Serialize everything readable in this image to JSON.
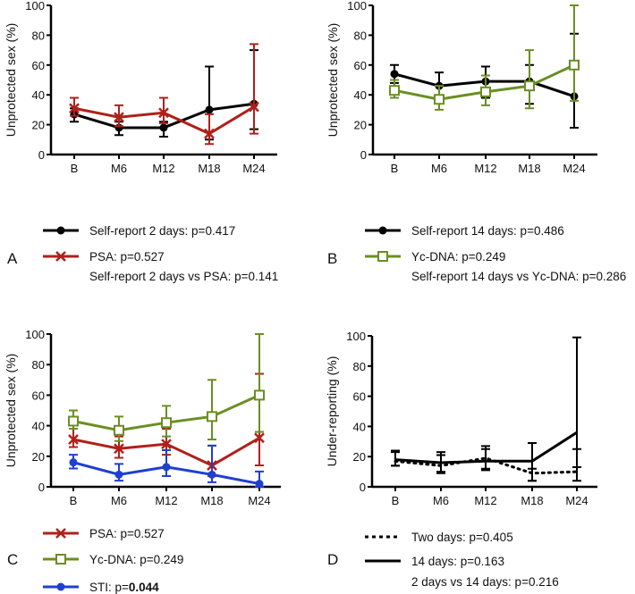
{
  "chart_data": [
    {
      "panel": "A",
      "type": "line",
      "ylabel": "Unprotected sex (%)",
      "ylim": [
        0,
        100
      ],
      "yticks": [
        "0",
        "20",
        "40",
        "60",
        "80",
        "100"
      ],
      "categories": [
        "B",
        "M6",
        "M12",
        "M18",
        "M24"
      ],
      "series": [
        {
          "name": "Self-report 2 days: p=0.417",
          "color": "#000000",
          "marker": "circle",
          "dash": "solid",
          "values": [
            27,
            18,
            18,
            30,
            34
          ],
          "lower": [
            22,
            13,
            12,
            10,
            17
          ],
          "upper": [
            31,
            22,
            22,
            59,
            70
          ]
        },
        {
          "name": "PSA: p=0.527",
          "color": "#b0201a",
          "marker": "x",
          "dash": "solid",
          "values": [
            31,
            25,
            28,
            14,
            32
          ],
          "lower": [
            26,
            19,
            21,
            7,
            14
          ],
          "upper": [
            38,
            33,
            38,
            27,
            74
          ]
        }
      ],
      "note": "Self-report 2 days vs PSA: p=0.141"
    },
    {
      "panel": "B",
      "type": "line",
      "ylabel": "Unprotected sex (%)",
      "ylim": [
        0,
        100
      ],
      "yticks": [
        "0",
        "20",
        "40",
        "60",
        "80",
        "100"
      ],
      "categories": [
        "B",
        "M6",
        "M12",
        "M18",
        "M24"
      ],
      "series": [
        {
          "name": "Self-report 14 days: p=0.486",
          "color": "#000000",
          "marker": "circle",
          "dash": "solid",
          "values": [
            54,
            46,
            49,
            49,
            39
          ],
          "lower": [
            48,
            37,
            38,
            34,
            18
          ],
          "upper": [
            60,
            55,
            59,
            60,
            81
          ]
        },
        {
          "name": "Yc-DNA: p=0.249",
          "color": "#6b8e23",
          "marker": "square",
          "dash": "solid",
          "values": [
            43,
            37,
            42,
            46,
            60
          ],
          "lower": [
            38,
            30,
            33,
            31,
            36
          ],
          "upper": [
            50,
            46,
            53,
            70,
            100
          ]
        }
      ],
      "note": "Self-report 14 days vs Yc-DNA: p=0.286"
    },
    {
      "panel": "C",
      "type": "line",
      "ylabel": "Unprotected sex (%)",
      "ylim": [
        0,
        100
      ],
      "yticks": [
        "0",
        "20",
        "40",
        "60",
        "80",
        "100"
      ],
      "categories": [
        "B",
        "M6",
        "M12",
        "M18",
        "M24"
      ],
      "series": [
        {
          "name": "PSA: p=0.527",
          "color": "#b0201a",
          "marker": "x",
          "dash": "solid",
          "values": [
            31,
            25,
            28,
            14,
            32
          ],
          "lower": [
            26,
            19,
            21,
            7,
            14
          ],
          "upper": [
            38,
            33,
            38,
            27,
            74
          ]
        },
        {
          "name": "Yc-DNA: p=0.249",
          "color": "#6b8e23",
          "marker": "square",
          "dash": "solid",
          "values": [
            43,
            37,
            42,
            46,
            60
          ],
          "lower": [
            38,
            30,
            33,
            31,
            36
          ],
          "upper": [
            50,
            46,
            53,
            70,
            100
          ]
        },
        {
          "name": "STI: p=",
          "name_bold": "0.044",
          "color": "#1f3fd0",
          "marker": "circle",
          "dash": "solid",
          "values": [
            16,
            8,
            13,
            8,
            2
          ],
          "lower": [
            12,
            4,
            7,
            3,
            0
          ],
          "upper": [
            21,
            15,
            24,
            27,
            10
          ]
        }
      ]
    },
    {
      "panel": "D",
      "type": "line",
      "ylabel": "Under-reporting (%)",
      "ylim": [
        0,
        100
      ],
      "yticks": [
        "0",
        "20",
        "40",
        "60",
        "80",
        "100"
      ],
      "categories": [
        "B",
        "M6",
        "M12",
        "M18",
        "M24"
      ],
      "series": [
        {
          "name": "Two days: p=0.405",
          "color": "#000000",
          "marker": "none",
          "dash": "dotted",
          "values": [
            17,
            14,
            19,
            9,
            10
          ],
          "lower": [
            14,
            10,
            12,
            4,
            4
          ],
          "upper": [
            23,
            21,
            25,
            12,
            25
          ]
        },
        {
          "name": "14 days: p=0.163",
          "color": "#000000",
          "marker": "none",
          "dash": "solid",
          "values": [
            18,
            16,
            17,
            17,
            36
          ],
          "lower": [
            14,
            9,
            11,
            4,
            13
          ],
          "upper": [
            24,
            23,
            27,
            29,
            99
          ]
        }
      ],
      "note": "2 days vs 14 days: p=0.216"
    }
  ]
}
